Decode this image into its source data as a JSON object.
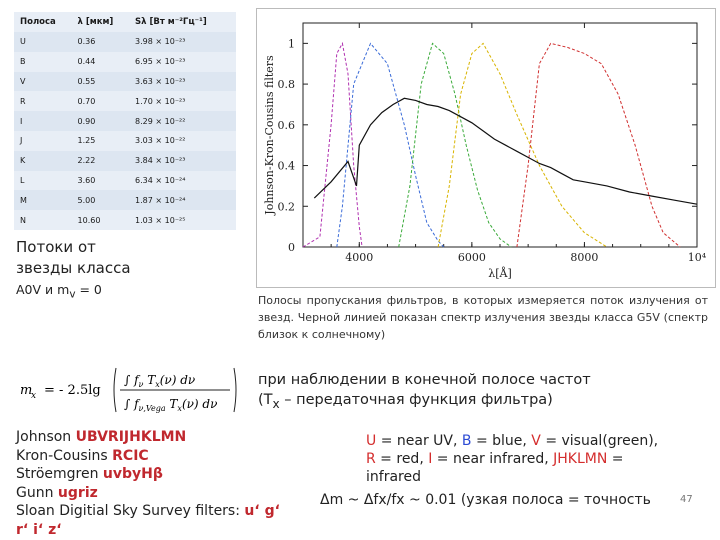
{
  "table": {
    "headers": [
      "Полоса",
      "λ [мкм]",
      "Sλ [Вт м⁻²Гц⁻¹]"
    ],
    "rows": [
      [
        "U",
        "0.36",
        "3.98 × 10⁻²³"
      ],
      [
        "B",
        "0.44",
        "6.95 × 10⁻²³"
      ],
      [
        "V",
        "0.55",
        "3.63 × 10⁻²³"
      ],
      [
        "R",
        "0.70",
        "1.70 × 10⁻²³"
      ],
      [
        "I",
        "0.90",
        "8.29 × 10⁻²²"
      ],
      [
        "J",
        "1.25",
        "3.03 × 10⁻²²"
      ],
      [
        "K",
        "2.22",
        "3.84 × 10⁻²³"
      ],
      [
        "L",
        "3.60",
        "6.34 × 10⁻²⁴"
      ],
      [
        "M",
        "5.00",
        "1.87 × 10⁻²⁴"
      ],
      [
        "N",
        "10.60",
        "1.03 × 10⁻²⁵"
      ]
    ]
  },
  "caption": {
    "line1": "Потоки от",
    "line2": "звезды класса",
    "line3": "A0V и m",
    "sub": "v",
    "tail": " = 0"
  },
  "chart_data": {
    "type": "line",
    "ylabel": "Johnson-Kron-Cousins filters",
    "xlabel": "λ[Å]",
    "xlim": [
      3000,
      10000
    ],
    "ylim": [
      0,
      1.1
    ],
    "x_ticks": [
      "4000",
      "6000",
      "8000",
      "10⁴"
    ],
    "y_ticks": [
      "0",
      "0.2",
      "0.4",
      "0.6",
      "0.8",
      "1"
    ],
    "series": [
      {
        "color": "#b030b0",
        "x": [
          3000,
          3300,
          3500,
          3600,
          3700,
          3800,
          3900,
          4000,
          4050
        ],
        "y": [
          0,
          0.05,
          0.6,
          0.95,
          1.0,
          0.85,
          0.4,
          0.1,
          0
        ]
      },
      {
        "color": "#3a6bd8",
        "x": [
          3600,
          3700,
          3900,
          4200,
          4500,
          4800,
          5000,
          5200,
          5400,
          5500
        ],
        "y": [
          0,
          0.2,
          0.8,
          1.0,
          0.9,
          0.6,
          0.35,
          0.12,
          0.03,
          0
        ]
      },
      {
        "color": "#3aaa3a",
        "x": [
          4700,
          4900,
          5100,
          5300,
          5500,
          5700,
          5900,
          6100,
          6300,
          6500,
          6700
        ],
        "y": [
          0,
          0.3,
          0.8,
          1.0,
          0.95,
          0.75,
          0.5,
          0.28,
          0.12,
          0.04,
          0
        ]
      },
      {
        "color": "#d8b400",
        "x": [
          5400,
          5600,
          5800,
          6000,
          6200,
          6500,
          6800,
          7200,
          7600,
          8000,
          8400
        ],
        "y": [
          0,
          0.3,
          0.75,
          0.95,
          1.0,
          0.85,
          0.65,
          0.4,
          0.2,
          0.07,
          0
        ]
      },
      {
        "color": "#d03030",
        "x": [
          6800,
          7000,
          7200,
          7400,
          7700,
          8000,
          8300,
          8600,
          8900,
          9200,
          9400,
          9700
        ],
        "y": [
          0,
          0.4,
          0.9,
          1.0,
          0.98,
          0.95,
          0.9,
          0.75,
          0.5,
          0.2,
          0.07,
          0
        ]
      },
      {
        "color": "#111111",
        "x": [
          3200,
          3500,
          3800,
          3950,
          4000,
          4200,
          4400,
          4600,
          4800,
          5000,
          5200,
          5400,
          5600,
          5800,
          6000,
          6200,
          6400,
          6600,
          6800,
          7000,
          7200,
          7400,
          7600,
          7800,
          8000,
          8400,
          8800,
          9200,
          9600,
          10000
        ],
        "y": [
          0.24,
          0.32,
          0.42,
          0.3,
          0.5,
          0.6,
          0.66,
          0.7,
          0.73,
          0.72,
          0.7,
          0.69,
          0.67,
          0.64,
          0.61,
          0.57,
          0.53,
          0.5,
          0.47,
          0.44,
          0.41,
          0.39,
          0.36,
          0.33,
          0.32,
          0.3,
          0.27,
          0.25,
          0.23,
          0.21
        ]
      }
    ]
  },
  "description": "Полосы пропускания фильтров, в которых измеряется поток излучения от звезд. Черной линией показан спектр излучения звезды класса G5V (спектр близок к солнечному)",
  "formula": {
    "lhs": "m",
    "lhs_sub": "x",
    "coef": "= - 2.5lg",
    "num": "∫ f",
    "den": "∫ f"
  },
  "observation": {
    "line1": "при наблюдении в конечной полосе частот",
    "line2": "(T",
    "sub": "x",
    "tail": " – передаточная функция фильтра)"
  },
  "systems": [
    {
      "label": "Johnson ",
      "value": "UBVRIJHKLMN"
    },
    {
      "label": "Kron-Cousins ",
      "value": "RCIC"
    },
    {
      "label": "Ströemgren ",
      "value": "uvbyHβ"
    },
    {
      "label": "Gunn ",
      "value": "ugriz"
    },
    {
      "label": "Sloan Digitial Sky Survey filters: ",
      "value": "u‘ g‘"
    },
    {
      "label": "",
      "value": "r‘ i‘ z‘"
    }
  ],
  "legend": {
    "u": "U",
    "u_text": " = near UV, ",
    "b": "B",
    "b_text": " = blue, ",
    "v": "V",
    "v_text": " = visual(green), ",
    "r": "R",
    "r_text": " = red, ",
    "i": "I",
    "i_text": " = near infrared, ",
    "jhk": "JHKLMN",
    "jhk_text": " = infrared"
  },
  "precision": "Δm ~ Δfx/fx ~ 0.01 (узкая полоса = точность",
  "page_number": "47"
}
